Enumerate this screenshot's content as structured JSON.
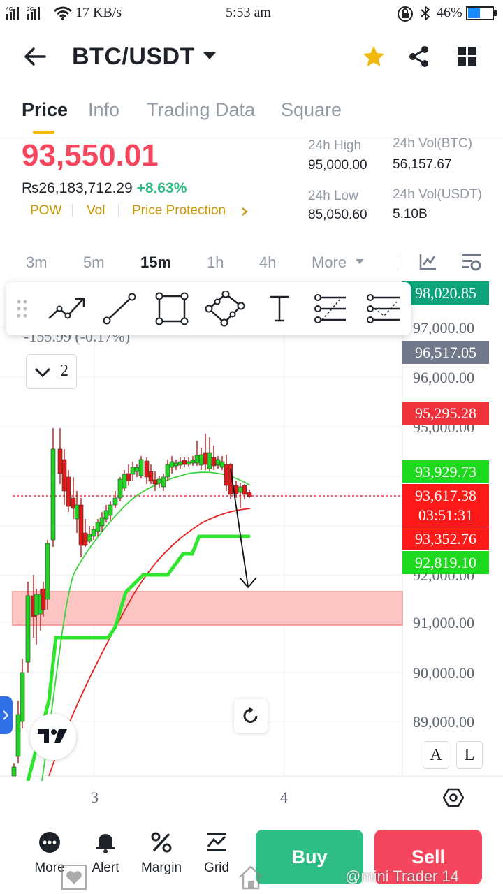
{
  "status_bar": {
    "network_4g": "4G",
    "network_2g": "2G",
    "speed": "17 KB/s",
    "time": "5:53 am",
    "battery": "46%"
  },
  "header": {
    "pair": "BTC/USDT",
    "icons": [
      "back-arrow-icon",
      "chevron-down-icon",
      "star-icon",
      "share-icon",
      "grid-icon"
    ],
    "star_color": "#f0b90b"
  },
  "tabs": [
    {
      "label": "Price",
      "active": true
    },
    {
      "label": "Info"
    },
    {
      "label": "Trading Data"
    },
    {
      "label": "Square"
    }
  ],
  "price": {
    "last": "93,550.01",
    "fiat": "₨26,183,712.29",
    "change": "+8.63%",
    "indicators": [
      "POW",
      "Vol",
      "Price Protection"
    ],
    "stats": {
      "high_label": "24h High",
      "high_value": "95,000.00",
      "low_label": "24h Low",
      "low_value": "85,050.60",
      "vol_btc_label": "24h Vol(BTC)",
      "vol_btc_value": "56,157.67",
      "vol_usdt_label": "24h Vol(USDT)",
      "vol_usdt_value": "5.10B"
    }
  },
  "timeframes": {
    "items": [
      "3m",
      "5m",
      "15m",
      "1h",
      "4h"
    ],
    "active": "15m",
    "more": "More"
  },
  "chart": {
    "change_overlay": "-155.99 (-0.17%)",
    "collapse_count": "2",
    "y_axis": [
      "97,000.00",
      "96,000.00",
      "95,000.00",
      "92,000.00",
      "91,000.00",
      "90,000.00",
      "89,000.00"
    ],
    "x_axis": [
      "3",
      "4"
    ],
    "tags": [
      {
        "value": "98,020.85",
        "color": "#0ea37a"
      },
      {
        "value": "96,517.05",
        "color": "#707a8a"
      },
      {
        "value": "95,295.28",
        "color": "#f0323c"
      },
      {
        "value": "93,929.73",
        "color": "#1ed91e"
      },
      {
        "value": "93,617.38",
        "color": "#ff1a1a"
      },
      {
        "value": "03:51:31",
        "color": "#ff1a1a"
      },
      {
        "value": "93,352.76",
        "color": "#ff1a1a"
      },
      {
        "value": "92,819.10",
        "color": "#1ed91e"
      }
    ],
    "scale_a": "A",
    "scale_l": "L"
  },
  "bottom_nav": {
    "items": [
      {
        "label": "More",
        "icon": "more-dots-icon"
      },
      {
        "label": "Alert",
        "icon": "bell-icon"
      },
      {
        "label": "Margin",
        "icon": "percent-icon"
      },
      {
        "label": "Grid",
        "icon": "grid-bot-icon"
      }
    ],
    "buy": "Buy",
    "sell": "Sell",
    "buy_color": "#2ebd85",
    "sell_color": "#f6465d"
  },
  "watermark": "@mini Trader 14"
}
